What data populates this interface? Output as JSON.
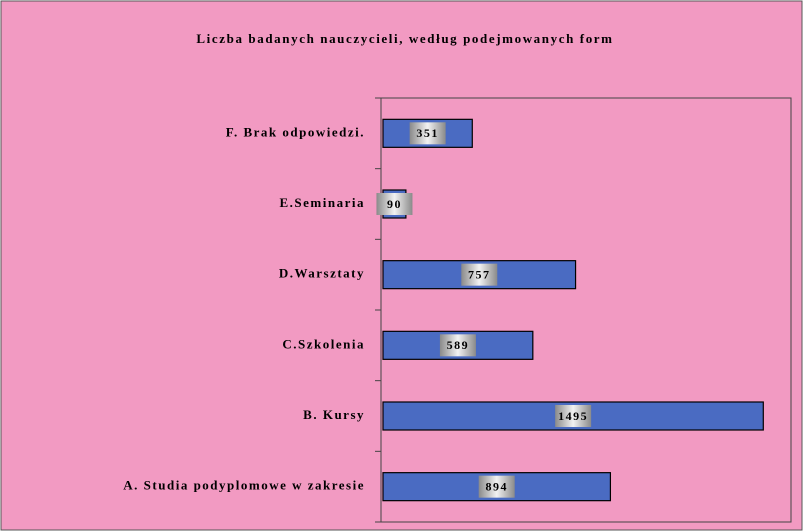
{
  "chart_data": {
    "type": "bar",
    "orientation": "horizontal",
    "title": "Liczba badanych nauczycieli, według podejmowanych form",
    "categories": [
      "A. Studia podyplomowe w zakresie",
      "B. Kursy",
      "C.Szkolenia",
      "D.Warsztaty",
      "E.Seminaria",
      "F. Brak odpowiedzi."
    ],
    "values": [
      894,
      1495,
      589,
      757,
      90,
      351
    ],
    "color": "#4a6bc2",
    "background": "#f29ac2",
    "xlim": [
      0,
      1600
    ]
  }
}
